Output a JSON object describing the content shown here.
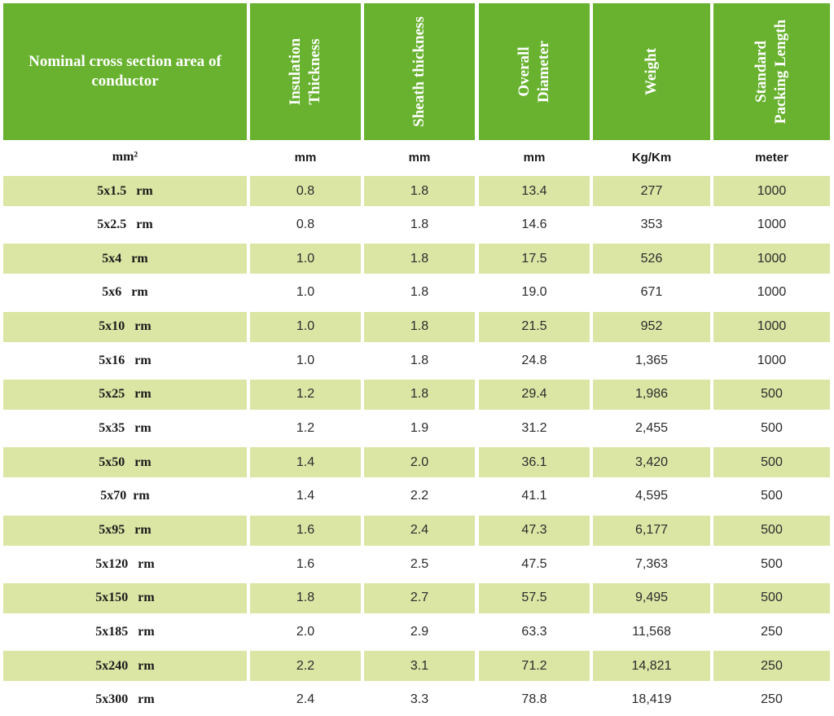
{
  "headers": [
    "Nominal cross section area of conductor",
    "Insulation\nThickness",
    "Sheath thickness",
    "Overall\nDiameter",
    "Weight",
    "Standard\nPacking Length"
  ],
  "units": [
    "mm²",
    "mm",
    "mm",
    "mm",
    "Kg/Km",
    "meter"
  ],
  "rows": [
    [
      "5x1.5   rm",
      "0.8",
      "1.8",
      "13.4",
      "277",
      "1000"
    ],
    [
      "5x2.5   rm",
      "0.8",
      "1.8",
      "14.6",
      "353",
      "1000"
    ],
    [
      "5x4   rm",
      "1.0",
      "1.8",
      "17.5",
      "526",
      "1000"
    ],
    [
      "5x6   rm",
      "1.0",
      "1.8",
      "19.0",
      "671",
      "1000"
    ],
    [
      "5x10   rm",
      "1.0",
      "1.8",
      "21.5",
      "952",
      "1000"
    ],
    [
      "5x16   rm",
      "1.0",
      "1.8",
      "24.8",
      "1,365",
      "1000"
    ],
    [
      "5x25   rm",
      "1.2",
      "1.8",
      "29.4",
      "1,986",
      "500"
    ],
    [
      "5x35   rm",
      "1.2",
      "1.9",
      "31.2",
      "2,455",
      "500"
    ],
    [
      "5x50   rm",
      "1.4",
      "2.0",
      "36.1",
      "3,420",
      "500"
    ],
    [
      "5x70  rm",
      "1.4",
      "2.2",
      "41.1",
      "4,595",
      "500"
    ],
    [
      "5x95   rm",
      "1.6",
      "2.4",
      "47.3",
      "6,177",
      "500"
    ],
    [
      "5x120   rm",
      "1.6",
      "2.5",
      "47.5",
      "7,363",
      "500"
    ],
    [
      "5x150   rm",
      "1.8",
      "2.7",
      "57.5",
      "9,495",
      "500"
    ],
    [
      "5x185   rm",
      "2.0",
      "2.9",
      "63.3",
      "11,568",
      "250"
    ],
    [
      "5x240   rm",
      "2.2",
      "3.1",
      "71.2",
      "14,821",
      "250"
    ],
    [
      "5x300   rm",
      "2.4",
      "3.3",
      "78.8",
      "18,419",
      "250"
    ]
  ],
  "colors": {
    "header_green": "#68b22f",
    "row_shade": "#dbe6a5",
    "header_text": "#ffffff"
  }
}
